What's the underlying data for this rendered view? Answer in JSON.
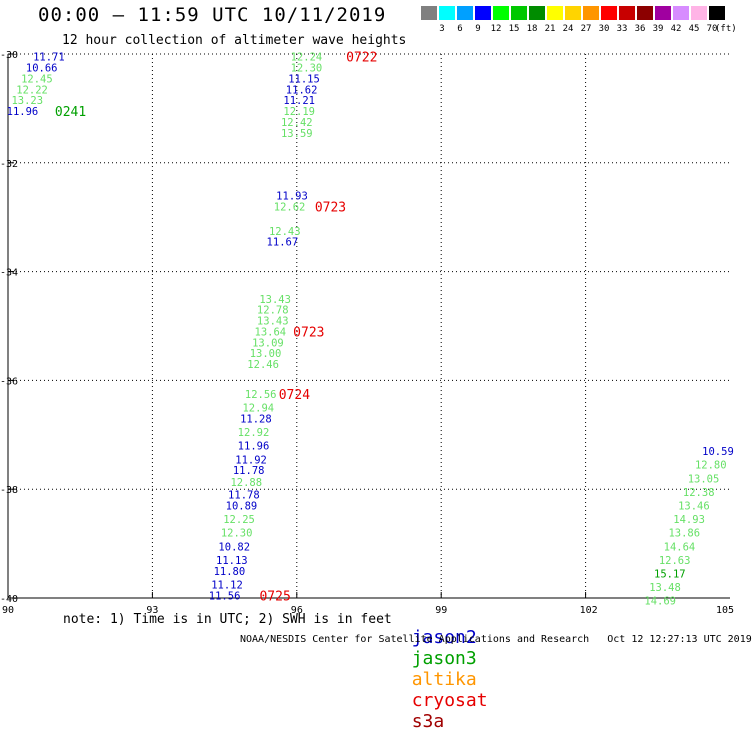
{
  "title": "00:00 – 11:59 UTC 10/11/2019",
  "subtitle": "12 hour collection of altimeter wave heights",
  "legend": {
    "unit": "(ft)",
    "items": [
      {
        "label": "3",
        "color": "#808080"
      },
      {
        "label": "6",
        "color": "#00ffff"
      },
      {
        "label": "9",
        "color": "#00a0ff"
      },
      {
        "label": "12",
        "color": "#0000ff"
      },
      {
        "label": "15",
        "color": "#00ff00"
      },
      {
        "label": "18",
        "color": "#00c800"
      },
      {
        "label": "21",
        "color": "#008c00"
      },
      {
        "label": "24",
        "color": "#ffff00"
      },
      {
        "label": "27",
        "color": "#ffd400"
      },
      {
        "label": "30",
        "color": "#ff9600"
      },
      {
        "label": "33",
        "color": "#ff0000"
      },
      {
        "label": "36",
        "color": "#c80000"
      },
      {
        "label": "39",
        "color": "#8c0000"
      },
      {
        "label": "42",
        "color": "#a000a0"
      },
      {
        "label": "45",
        "color": "#d78cff"
      },
      {
        "label": "70",
        "color": "#ffb4e6"
      },
      {
        "label": "",
        "color": "#000000"
      }
    ]
  },
  "map": {
    "lat_labels": [
      "-30",
      "-32",
      "-34",
      "-36",
      "-38",
      "-40"
    ],
    "lon_labels": [
      "90",
      "93",
      "96",
      "99",
      "102",
      "105"
    ],
    "lat_range": [
      -40,
      -30
    ],
    "lon_range": [
      90,
      105
    ]
  },
  "colors": {
    "jason2": "#0000c8",
    "jason3": "#00a000",
    "altika": "#ff9600",
    "cryosat": "#e60000",
    "s3a": "#a00000",
    "wave_light": "#66e066"
  },
  "observations": [
    {
      "text": "11.71",
      "lon": 90.85,
      "lat": -30.05,
      "c": "dark"
    },
    {
      "text": "10.66",
      "lon": 90.7,
      "lat": -30.25,
      "c": "dark"
    },
    {
      "text": "12.45",
      "lon": 90.6,
      "lat": -30.45,
      "c": "light"
    },
    {
      "text": "12.22",
      "lon": 90.5,
      "lat": -30.65,
      "c": "light"
    },
    {
      "text": "13.23",
      "lon": 90.4,
      "lat": -30.85,
      "c": "light"
    },
    {
      "text": "11.96",
      "lon": 90.3,
      "lat": -31.05,
      "c": "dark"
    },
    {
      "text": "12.24",
      "lon": 96.2,
      "lat": -30.05,
      "c": "light"
    },
    {
      "text": "12.30",
      "lon": 96.2,
      "lat": -30.25,
      "c": "light"
    },
    {
      "text": "11.15",
      "lon": 96.15,
      "lat": -30.45,
      "c": "dark"
    },
    {
      "text": "11.62",
      "lon": 96.1,
      "lat": -30.65,
      "c": "dark"
    },
    {
      "text": "11.21",
      "lon": 96.05,
      "lat": -30.85,
      "c": "dark"
    },
    {
      "text": "12.19",
      "lon": 96.05,
      "lat": -31.05,
      "c": "light"
    },
    {
      "text": "12.42",
      "lon": 96.0,
      "lat": -31.25,
      "c": "light"
    },
    {
      "text": "13.59",
      "lon": 96.0,
      "lat": -31.45,
      "c": "light"
    },
    {
      "text": "11.93",
      "lon": 95.9,
      "lat": -32.6,
      "c": "dark"
    },
    {
      "text": "12.62",
      "lon": 95.85,
      "lat": -32.8,
      "c": "light"
    },
    {
      "text": "12.43",
      "lon": 95.75,
      "lat": -33.25,
      "c": "light"
    },
    {
      "text": "11.67",
      "lon": 95.7,
      "lat": -33.45,
      "c": "dark"
    },
    {
      "text": "13.43",
      "lon": 95.55,
      "lat": -34.5,
      "c": "light"
    },
    {
      "text": "12.78",
      "lon": 95.5,
      "lat": -34.7,
      "c": "light"
    },
    {
      "text": "13.43",
      "lon": 95.5,
      "lat": -34.9,
      "c": "light"
    },
    {
      "text": "13.64",
      "lon": 95.45,
      "lat": -35.1,
      "c": "light"
    },
    {
      "text": "13.09",
      "lon": 95.4,
      "lat": -35.3,
      "c": "light"
    },
    {
      "text": "13.00",
      "lon": 95.35,
      "lat": -35.5,
      "c": "light"
    },
    {
      "text": "12.46",
      "lon": 95.3,
      "lat": -35.7,
      "c": "light"
    },
    {
      "text": "12.56",
      "lon": 95.25,
      "lat": -36.25,
      "c": "light"
    },
    {
      "text": "12.94",
      "lon": 95.2,
      "lat": -36.5,
      "c": "light"
    },
    {
      "text": "11.28",
      "lon": 95.15,
      "lat": -36.7,
      "c": "dark"
    },
    {
      "text": "12.92",
      "lon": 95.1,
      "lat": -36.95,
      "c": "light"
    },
    {
      "text": "11.96",
      "lon": 95.1,
      "lat": -37.2,
      "c": "dark"
    },
    {
      "text": "11.92",
      "lon": 95.05,
      "lat": -37.45,
      "c": "dark"
    },
    {
      "text": "11.78",
      "lon": 95.0,
      "lat": -37.65,
      "c": "dark"
    },
    {
      "text": "12.88",
      "lon": 94.95,
      "lat": -37.87,
      "c": "light"
    },
    {
      "text": "11.78",
      "lon": 94.9,
      "lat": -38.1,
      "c": "dark"
    },
    {
      "text": "10.89",
      "lon": 94.85,
      "lat": -38.3,
      "c": "dark"
    },
    {
      "text": "12.25",
      "lon": 94.8,
      "lat": -38.55,
      "c": "light"
    },
    {
      "text": "12.30",
      "lon": 94.75,
      "lat": -38.8,
      "c": "light"
    },
    {
      "text": "10.82",
      "lon": 94.7,
      "lat": -39.05,
      "c": "dark"
    },
    {
      "text": "11.13",
      "lon": 94.65,
      "lat": -39.3,
      "c": "dark"
    },
    {
      "text": "11.80",
      "lon": 94.6,
      "lat": -39.5,
      "c": "dark"
    },
    {
      "text": "11.12",
      "lon": 94.55,
      "lat": -39.75,
      "c": "dark"
    },
    {
      "text": "11.56",
      "lon": 94.5,
      "lat": -39.95,
      "c": "dark"
    },
    {
      "text": "12.80",
      "lon": 104.6,
      "lat": -37.55,
      "c": "light"
    },
    {
      "text": "13.05",
      "lon": 104.45,
      "lat": -37.8,
      "c": "light"
    },
    {
      "text": "12.38",
      "lon": 104.35,
      "lat": -38.05,
      "c": "light"
    },
    {
      "text": "13.46",
      "lon": 104.25,
      "lat": -38.3,
      "c": "light"
    },
    {
      "text": "14.93",
      "lon": 104.15,
      "lat": -38.55,
      "c": "light"
    },
    {
      "text": "13.86",
      "lon": 104.05,
      "lat": -38.8,
      "c": "light"
    },
    {
      "text": "14.64",
      "lon": 103.95,
      "lat": -39.05,
      "c": "light"
    },
    {
      "text": "12.63",
      "lon": 103.85,
      "lat": -39.3,
      "c": "light"
    },
    {
      "text": "15.17",
      "lon": 103.75,
      "lat": -39.55,
      "c": "green"
    },
    {
      "text": "13.48",
      "lon": 103.65,
      "lat": -39.8,
      "c": "light"
    },
    {
      "text": "14.69",
      "lon": 103.55,
      "lat": -40.05,
      "c": "light"
    },
    {
      "text": "10.59",
      "lon": 104.75,
      "lat": -37.3,
      "c": "dark"
    }
  ],
  "time_labels": [
    {
      "text": "0241",
      "lon": 91.3,
      "lat": -31.05,
      "sat": "jason3"
    },
    {
      "text": "0722",
      "lon": 97.35,
      "lat": -30.05,
      "sat": "cryosat"
    },
    {
      "text": "0723",
      "lon": 96.7,
      "lat": -32.8,
      "sat": "cryosat"
    },
    {
      "text": "0723",
      "lon": 96.25,
      "lat": -35.1,
      "sat": "cryosat"
    },
    {
      "text": "0724",
      "lon": 95.95,
      "lat": -36.25,
      "sat": "cryosat"
    },
    {
      "text": "0725",
      "lon": 95.55,
      "lat": -39.95,
      "sat": "cryosat"
    }
  ],
  "note": "note: 1) Time is in UTC; 2) SWH is in feet",
  "satellites": {
    "jason2": "jason2",
    "jason3": "jason3",
    "altika": "altika",
    "cryosat": "cryosat",
    "s3a": "s3a"
  },
  "footer": "NOAA/NESDIS Center for Satellite Applications and Research   Oct 12 12:27:13 UTC 2019"
}
